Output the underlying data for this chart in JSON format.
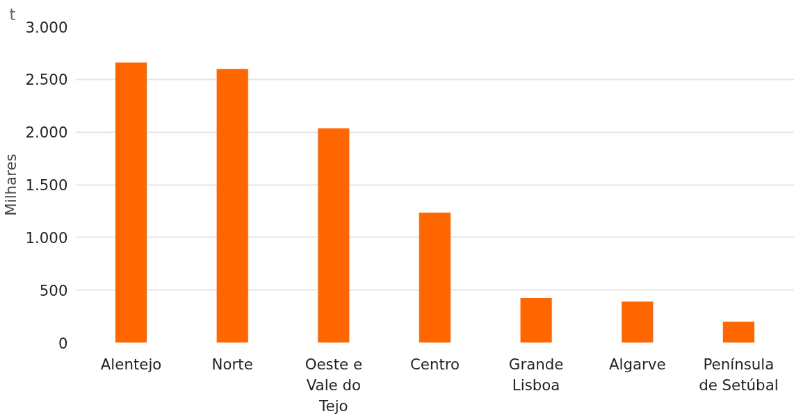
{
  "chart_data": {
    "type": "bar",
    "ylabel": "Milhares",
    "annotations": [
      "t"
    ],
    "categories": [
      "Alentejo",
      "Norte",
      "Oeste e Vale do Tejo",
      "Centro",
      "Grande Lisboa",
      "Algarve",
      "Península de Setúbal"
    ],
    "values": [
      2660,
      2600,
      2035,
      1235,
      425,
      390,
      200
    ],
    "color": "#ff6600",
    "ylim": [
      0,
      3000
    ],
    "yticks": [
      {
        "value": 0,
        "label": "0"
      },
      {
        "value": 500,
        "label": "500"
      },
      {
        "value": 1000,
        "label": "1.000"
      },
      {
        "value": 1500,
        "label": "1.500"
      },
      {
        "value": 2000,
        "label": "2.000"
      },
      {
        "value": 2500,
        "label": "2.500"
      },
      {
        "value": 3000,
        "label": "3.000"
      }
    ],
    "grid": "y"
  }
}
